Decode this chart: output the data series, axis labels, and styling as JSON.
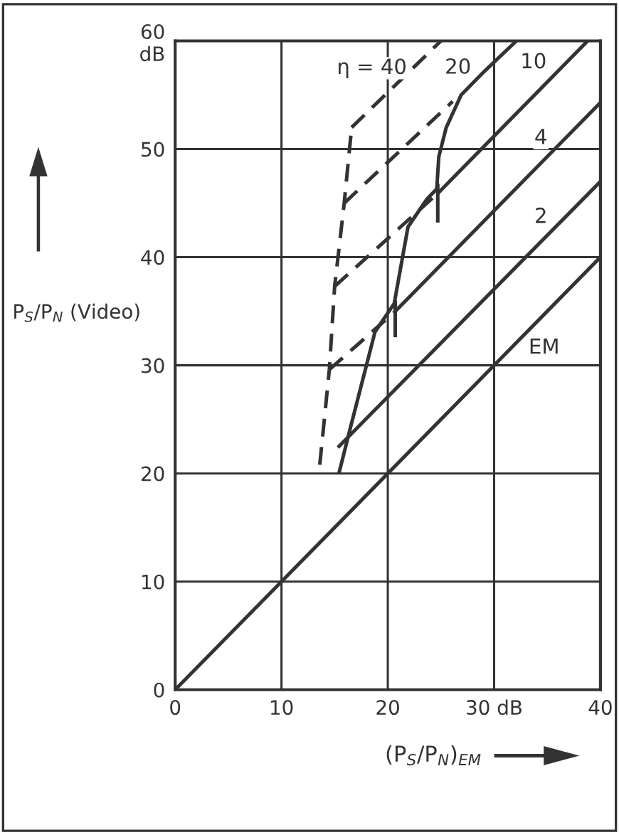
{
  "chart_data": {
    "type": "line",
    "xlabel": "(P$_{S}$/P$_{N}$)$_{EM}$",
    "ylabel": "P$_{S}$/P$_{N}$ (Video)",
    "xlim": [
      0,
      40
    ],
    "ylim": [
      0,
      60
    ],
    "xticks": [
      0,
      10,
      20,
      {
        "value": 30,
        "label": "30 dB"
      },
      40
    ],
    "yticks": [
      0,
      10,
      20,
      30,
      40,
      50,
      {
        "value": 60,
        "label": "60\ndB"
      }
    ],
    "grid": true,
    "legend": false,
    "marker": "none",
    "series": [
      {
        "color": "#333333",
        "line_style": "solid",
        "x": [
          0,
          40
        ],
        "values": [
          0,
          40
        ]
      },
      {
        "color": "#333333",
        "line_style": "solid",
        "x": [
          15.3,
          40
        ],
        "values": [
          22.4,
          47
        ]
      },
      {
        "color": "#333333",
        "line_style": "solid",
        "x": [
          20.6,
          40
        ],
        "values": [
          34.9,
          54.3
        ]
      },
      {
        "color": "#333333",
        "line_style": "dashed",
        "x": [
          14.5,
          20.6
        ],
        "values": [
          29.6,
          34.9
        ]
      },
      {
        "color": "#333333",
        "line_style": "solid",
        "x": [
          24.7,
          38.8
        ],
        "values": [
          45.9,
          60
        ]
      },
      {
        "color": "#333333",
        "line_style": "dashed",
        "x": [
          15.0,
          24.7
        ],
        "values": [
          37.3,
          45.9
        ]
      },
      {
        "color": "#333333",
        "line_style": "dashed",
        "x": [
          15.9,
          26.1
        ],
        "values": [
          45,
          54.4
        ]
      },
      {
        "color": "#333333",
        "line_style": "dashed",
        "x": [
          16.6,
          25
        ],
        "values": [
          52,
          60
        ]
      },
      {
        "color": "#333333",
        "line_style": "dashed",
        "x": [
          13.6,
          14.5,
          15.0,
          15.9,
          16.6
        ],
        "values": [
          20.8,
          29.6,
          37.3,
          45,
          52
        ]
      },
      {
        "color": "#333333",
        "line_style": "solid",
        "x": [
          15.4,
          16.5,
          18.8,
          20.6,
          21.9,
          23.7,
          24.6,
          24.8,
          25.5,
          26.9,
          29.1,
          32.1
        ],
        "values": [
          20,
          24.3,
          33.1,
          35.7,
          42.8,
          45.4,
          46.3,
          49.3,
          52,
          55,
          57.2,
          60
        ]
      },
      {
        "color": "#333333",
        "line_style": "solid",
        "x": [
          20.7,
          20.7
        ],
        "values": [
          32.6,
          36
        ]
      },
      {
        "color": "#333333",
        "line_style": "solid",
        "x": [
          24.7,
          24.7
        ],
        "values": [
          43.2,
          46.8
        ]
      }
    ],
    "annotations": [
      "η = 40",
      {
        "text": "20",
        "x": 26.6,
        "y": 57.5
      },
      {
        "text": "10",
        "x": 33.7,
        "y": 58
      },
      {
        "text": "4",
        "x": 34.4,
        "y": 51
      },
      {
        "text": "2",
        "x": 34.4,
        "y": 43.7
      },
      {
        "text": "EM",
        "x": 34.7,
        "y": 31.6
      }
    ]
  }
}
